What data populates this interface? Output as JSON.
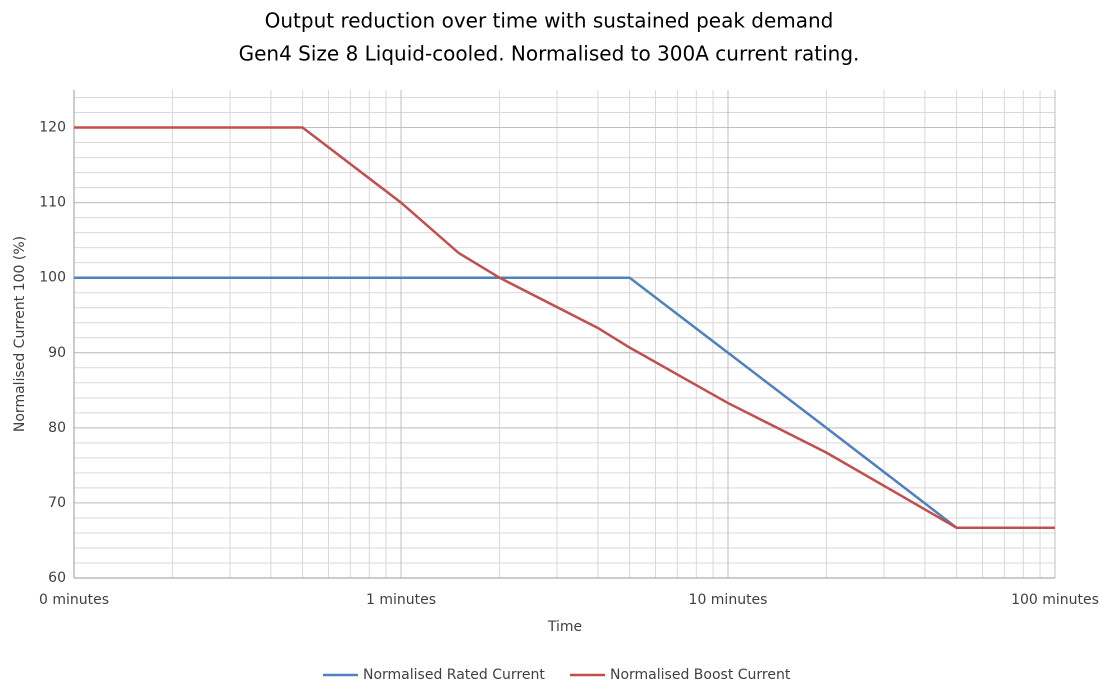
{
  "chart_data": {
    "type": "line",
    "title": "Output reduction over time with sustained peak demand",
    "subtitle": "Gen4 Size 8 Liquid-cooled. Normalised to 300A current rating.",
    "x_label": "Time",
    "y_label": "Normalised Current 100 (%)",
    "x_log": true,
    "grid": true,
    "minor_grid": true,
    "legend": "bottom",
    "xlim": [
      0.1,
      100
    ],
    "xticks": [
      {
        "value": 0.1,
        "label": "0 minutes"
      },
      {
        "value": 1,
        "label": "1 minutes"
      },
      {
        "value": 10,
        "label": "10 minutes"
      },
      {
        "value": 100,
        "label": "100 minutes"
      }
    ],
    "ylim": [
      60,
      125
    ],
    "yticks": [
      60,
      70,
      80,
      90,
      100,
      110,
      120
    ],
    "series": [
      {
        "name": "Normalised Rated Current",
        "color": "#4f81bd",
        "x": [
          0.1,
          5,
          10,
          20,
          50,
          100
        ],
        "values": [
          100,
          100,
          90,
          80,
          66.7,
          66.7
        ]
      },
      {
        "name": "Normalised Boost Current",
        "color": "#c0504d",
        "x": [
          0.1,
          0.5,
          1,
          1.5,
          2,
          4,
          5,
          10,
          20,
          50,
          100
        ],
        "values": [
          120,
          120,
          110,
          103.3,
          100,
          93.3,
          90.7,
          83.3,
          76.7,
          66.7,
          66.7
        ]
      }
    ]
  }
}
